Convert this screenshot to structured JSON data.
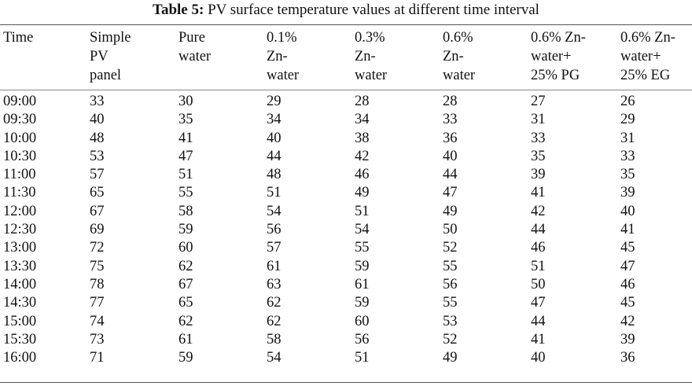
{
  "caption": {
    "label": "Table 5:",
    "text": "PV surface temperature values at different time interval"
  },
  "table": {
    "headers": [
      [
        "Time"
      ],
      [
        "Simple",
        "PV",
        "panel"
      ],
      [
        "Pure",
        "water"
      ],
      [
        "0.1%",
        "Zn-",
        "water"
      ],
      [
        "0.3%",
        "Zn-",
        "water"
      ],
      [
        "0.6%",
        "Zn-",
        "water"
      ],
      [
        "0.6% Zn-",
        "water+",
        "25% PG"
      ],
      [
        "0.6% Zn-",
        "water+",
        "25% EG"
      ]
    ],
    "rows": [
      [
        "09:00",
        "33",
        "30",
        "29",
        "28",
        "28",
        "27",
        "26"
      ],
      [
        "09:30",
        "40",
        "35",
        "34",
        "34",
        "33",
        "31",
        "29"
      ],
      [
        "10:00",
        "48",
        "41",
        "40",
        "38",
        "36",
        "33",
        "31"
      ],
      [
        "10:30",
        "53",
        "47",
        "44",
        "42",
        "40",
        "35",
        "33"
      ],
      [
        "11:00",
        "57",
        "51",
        "48",
        "46",
        "44",
        "39",
        "35"
      ],
      [
        "11:30",
        "65",
        "55",
        "51",
        "49",
        "47",
        "41",
        "39"
      ],
      [
        "12:00",
        "67",
        "58",
        "54",
        "51",
        "49",
        "42",
        "40"
      ],
      [
        "12:30",
        "69",
        "59",
        "56",
        "54",
        "50",
        "44",
        "41"
      ],
      [
        "13:00",
        "72",
        "60",
        "57",
        "55",
        "52",
        "46",
        "45"
      ],
      [
        "13:30",
        "75",
        "62",
        "61",
        "59",
        "55",
        "51",
        "47"
      ],
      [
        "14:00",
        "78",
        "67",
        "63",
        "61",
        "56",
        "50",
        "46"
      ],
      [
        "14:30",
        "77",
        "65",
        "62",
        "59",
        "55",
        "47",
        "45"
      ],
      [
        "15:00",
        "74",
        "62",
        "62",
        "60",
        "53",
        "44",
        "42"
      ],
      [
        "15:30",
        "73",
        "61",
        "58",
        "56",
        "52",
        "41",
        "39"
      ],
      [
        "16:00",
        "71",
        "59",
        "54",
        "51",
        "49",
        "40",
        "36"
      ]
    ]
  }
}
